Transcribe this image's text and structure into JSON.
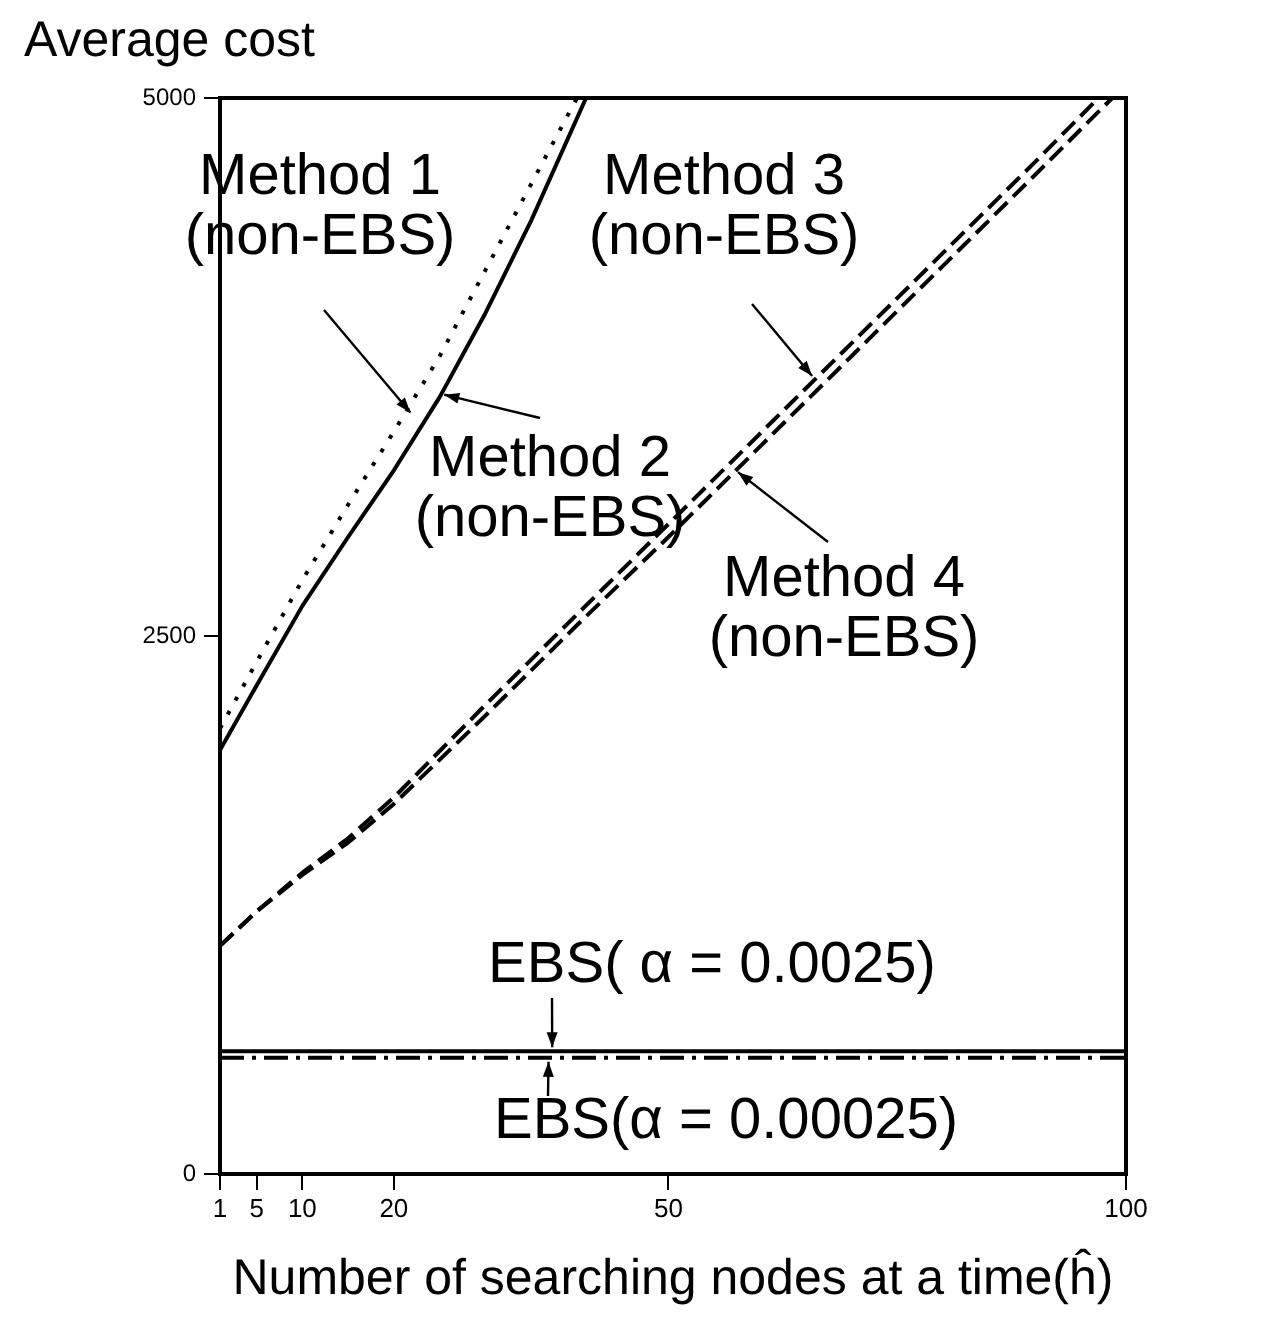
{
  "chart_data": {
    "type": "line",
    "xlabel": "Number of searching nodes at a time(ĥ)",
    "ylabel": "Average cost",
    "xlim": [
      1,
      100
    ],
    "xticks": [
      1,
      5,
      10,
      20,
      50,
      100
    ],
    "ylim": [
      0,
      5000
    ],
    "yticks": [
      0,
      2500,
      5000
    ],
    "grid": false,
    "marker": "none",
    "annotations": [
      {
        "text": "Method 1 (non-EBS)",
        "x": 21.8,
        "y": 3520
      },
      {
        "text": "Method 2 (non-EBS)",
        "x": 25.5,
        "y": 3640
      },
      {
        "text": "Method 3 (non-EBS)",
        "x": 65.7,
        "y": 3690
      },
      {
        "text": "Method 4 (non-EBS)",
        "x": 57.6,
        "y": 3280
      },
      {
        "text": "EBS( α = 0.0025)",
        "x": 37.3,
        "y": 570
      },
      {
        "text": "EBS(α = 0.00025)",
        "x": 36.9,
        "y": 540
      }
    ],
    "series": [
      {
        "color": "#000000",
        "line_style": "dotted",
        "x": [
          1,
          5,
          10,
          15,
          20,
          25,
          30,
          35,
          40
        ],
        "values": [
          2070,
          2380,
          2760,
          3110,
          3450,
          3800,
          4200,
          4600,
          5000
        ]
      },
      {
        "color": "#000000",
        "line_style": "solid",
        "x": [
          1,
          5,
          10,
          15,
          20,
          25,
          30,
          35,
          41
        ],
        "values": [
          1970,
          2270,
          2640,
          2960,
          3270,
          3610,
          4000,
          4430,
          5000
        ]
      },
      {
        "color": "#000000",
        "line_style": "dashed",
        "x": [
          1,
          5,
          10,
          15,
          20,
          30,
          40,
          50,
          60,
          70,
          80,
          90,
          97
        ],
        "values": [
          1060,
          1220,
          1400,
          1560,
          1750,
          2180,
          2600,
          3020,
          3440,
          3860,
          4280,
          4700,
          5000
        ]
      },
      {
        "color": "#000000",
        "line_style": "dashed",
        "x": [
          1,
          5,
          10,
          15,
          20,
          30,
          40,
          50,
          60,
          70,
          80,
          90,
          98.5
        ],
        "values": [
          1060,
          1220,
          1390,
          1540,
          1720,
          2130,
          2550,
          2960,
          3380,
          3800,
          4220,
          4640,
          5000
        ]
      },
      {
        "color": "#000000",
        "line_style": "solid",
        "x": [
          1,
          100
        ],
        "values": [
          570,
          570
        ]
      },
      {
        "color": "#000000",
        "line_style": "dashdot",
        "x": [
          1,
          100
        ],
        "values": [
          540,
          540
        ]
      }
    ]
  }
}
